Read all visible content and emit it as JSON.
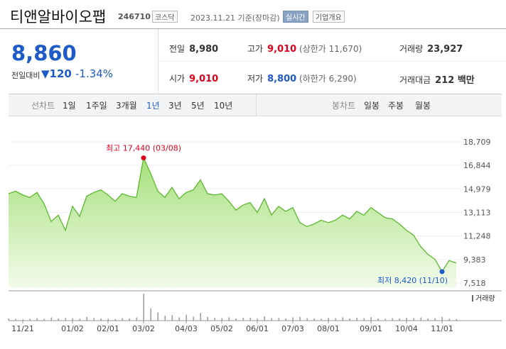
{
  "header": {
    "title": "티앤알바이오팹",
    "code": "246710",
    "market": "코스닥",
    "date": "2023.11.21 기준(장마감)",
    "realtime": "실시간",
    "company": "기업개요"
  },
  "price": {
    "current": "8,860",
    "change_label": "전일대비",
    "change": "120",
    "rate": "-1.34%"
  },
  "info": [
    [
      "전일",
      "8,980"
    ],
    [
      "고가",
      "9,010",
      "(상한가 11,670)"
    ],
    [
      "거래량",
      "23,927"
    ],
    [
      "시가",
      "9,010"
    ],
    [
      "저가",
      "8,800",
      "(하한가 6,290)"
    ],
    [
      "거래대금",
      "212 백만"
    ]
  ],
  "tabs": {
    "line_label": "선차트",
    "line": [
      "1일",
      "1주일",
      "3개월",
      "1년",
      "3년",
      "5년",
      "10년"
    ],
    "candle_label": "봉차트",
    "candle": [
      "일봉",
      "주봉",
      "월봉"
    ]
  },
  "chart_data": {
    "type": "line",
    "categories": [
      null,
      null,
      "11/21",
      null,
      null,
      null,
      null,
      null,
      null,
      "01/02",
      null,
      null,
      null,
      null,
      "02/01",
      null,
      null,
      null,
      null,
      "03/02",
      null,
      null,
      null,
      null,
      null,
      "04/03",
      null,
      null,
      null,
      null,
      "05/02",
      null,
      null,
      null,
      null,
      "06/01",
      null,
      null,
      null,
      null,
      "07/03",
      null,
      null,
      null,
      null,
      "08/01",
      null,
      null,
      null,
      null,
      null,
      "09/01",
      null,
      null,
      null,
      null,
      "10/04",
      null,
      null,
      null,
      null,
      "11/01",
      null,
      null
    ],
    "price": {
      "color": "#5cb82e",
      "values": [
        14600,
        14800,
        14500,
        14300,
        14700,
        13800,
        12400,
        12900,
        11700,
        13600,
        12800,
        14400,
        14700,
        14900,
        14500,
        14000,
        14600,
        14400,
        14300,
        17440,
        16200,
        14800,
        14300,
        15100,
        14200,
        14700,
        14900,
        15700,
        14600,
        14500,
        14600,
        14000,
        13300,
        13700,
        13900,
        13100,
        14200,
        12900,
        13600,
        13200,
        13500,
        12300,
        12000,
        12200,
        12500,
        12300,
        12500,
        12900,
        12600,
        13200,
        12900,
        13500,
        13100,
        12700,
        12600,
        12200,
        11700,
        11300,
        10400,
        9800,
        9400,
        8420,
        9300,
        9100
      ]
    },
    "volume": {
      "name": "거래량",
      "color": "#999999",
      "values": [
        8,
        6,
        5,
        7,
        9,
        6,
        12,
        8,
        10,
        9,
        7,
        14,
        10,
        8,
        7,
        6,
        9,
        8,
        12,
        100,
        45,
        30,
        18,
        20,
        12,
        22,
        15,
        28,
        14,
        10,
        9,
        12,
        8,
        10,
        11,
        7,
        16,
        9,
        10,
        8,
        12,
        14,
        9,
        8,
        7,
        10,
        9,
        12,
        8,
        11,
        9,
        13,
        8,
        7,
        9,
        8,
        10,
        9,
        12,
        8,
        9,
        14,
        7,
        6
      ]
    },
    "ylim": [
      7518,
      18709
    ],
    "yticks": [
      {
        "value": 7518,
        "label": "7,518"
      },
      {
        "value": 9383,
        "label": "9,383"
      },
      {
        "value": 11248,
        "label": "11,248"
      },
      {
        "value": 13113,
        "label": "13,113"
      },
      {
        "value": 14979,
        "label": "14,979"
      },
      {
        "value": 16844,
        "label": "16,844"
      },
      {
        "value": 18709,
        "label": "18,709"
      }
    ],
    "high_label": "최고 17,440 (03/08)",
    "low_label": "최저 8,420 (11/10)"
  }
}
